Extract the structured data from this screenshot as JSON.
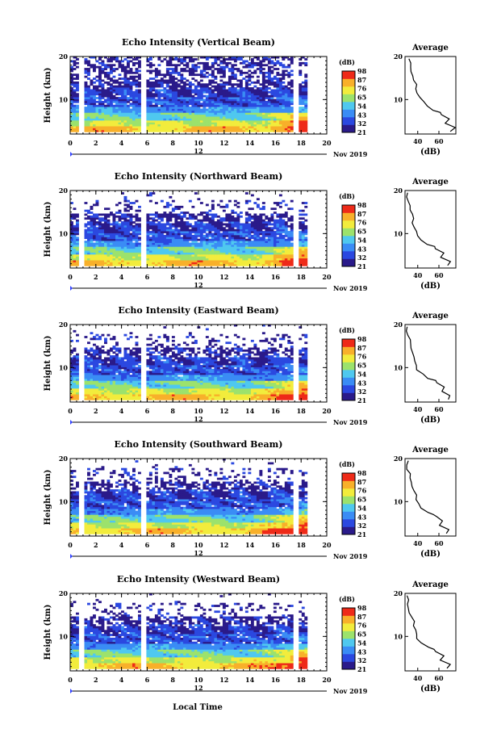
{
  "figure": {
    "date_label": "Nov 2019",
    "day_label": "12",
    "xlabel": "Local Time",
    "ylabel": "Height (km)",
    "colorbar_unit": "(dB)",
    "avg_title": "Average",
    "avg_xlabel": "(dB)"
  },
  "chart_data": [
    {
      "type": "heatmap",
      "title": "Echo Intensity (Vertical Beam)",
      "xlabel": "Local Time",
      "ylabel": "Height (km)",
      "xlim": [
        0,
        20
      ],
      "ylim": [
        2,
        20
      ],
      "xticks": [
        0,
        2,
        4,
        6,
        8,
        10,
        12,
        14,
        16,
        18,
        20
      ],
      "yticks": [
        10,
        20
      ],
      "colorbar": {
        "label": "(dB)",
        "ticks": [
          21,
          32,
          43,
          54,
          65,
          76,
          87,
          98
        ],
        "colors": [
          "#2a1a8a",
          "#2b48e0",
          "#3a8cf5",
          "#4fc8ef",
          "#9ce26c",
          "#f2ec3c",
          "#f8b02a",
          "#ee2a18"
        ]
      },
      "data_gaps_hours": [
        [
          0.75,
          1.1
        ],
        [
          5.6,
          5.85
        ],
        [
          17.55,
          17.75
        ]
      ],
      "cutoff_hour": 18.3,
      "average_profile": {
        "title": "Average",
        "xlabel": "(dB)",
        "xlim": [
          28,
          76
        ],
        "ylim": [
          2,
          20
        ],
        "xticks": [
          40,
          60
        ],
        "yticks": [
          10,
          20
        ],
        "height": [
          2.6,
          3.5,
          4.5,
          5.5,
          6.5,
          7.0,
          7.5,
          8.5,
          9.5,
          10.5,
          11.5,
          12.5,
          13.5,
          14.5,
          15.5,
          16.5,
          17.5,
          18.5,
          19.5
        ],
        "value": [
          72,
          74,
          66,
          70,
          62,
          60,
          56,
          48,
          46,
          42,
          40,
          38,
          38,
          36,
          34,
          34,
          32,
          32,
          32
        ]
      }
    },
    {
      "type": "heatmap",
      "title": "Echo Intensity (Northward Beam)",
      "xlabel": "Local Time",
      "ylabel": "Height (km)",
      "xlim": [
        0,
        20
      ],
      "ylim": [
        2,
        20
      ],
      "xticks": [
        0,
        2,
        4,
        6,
        8,
        10,
        12,
        14,
        16,
        18,
        20
      ],
      "yticks": [
        10,
        20
      ],
      "colorbar": {
        "label": "(dB)",
        "ticks": [
          21,
          32,
          43,
          54,
          65,
          76,
          87,
          98
        ],
        "colors": [
          "#2a1a8a",
          "#2b48e0",
          "#3a8cf5",
          "#4fc8ef",
          "#9ce26c",
          "#f2ec3c",
          "#f8b02a",
          "#ee2a18"
        ]
      },
      "data_gaps_hours": [
        [
          0.75,
          1.1
        ],
        [
          5.6,
          5.85
        ],
        [
          17.55,
          17.75
        ]
      ],
      "cutoff_hour": 18.3,
      "average_profile": {
        "title": "Average",
        "xlabel": "(dB)",
        "xlim": [
          28,
          76
        ],
        "ylim": [
          2,
          20
        ],
        "xticks": [
          40,
          60
        ],
        "yticks": [
          10,
          20
        ],
        "height": [
          2.6,
          3.5,
          4.5,
          5.5,
          6.5,
          7.0,
          7.5,
          8.5,
          9.5,
          10.5,
          11.5,
          12.5,
          13.5,
          14.5,
          15.5,
          16.5,
          17.5,
          18.5,
          19.5
        ],
        "value": [
          68,
          70,
          62,
          64,
          58,
          56,
          50,
          44,
          40,
          38,
          38,
          36,
          36,
          34,
          33,
          32,
          31,
          30,
          30
        ]
      }
    },
    {
      "type": "heatmap",
      "title": "Echo Intensity (Eastward Beam)",
      "xlabel": "Local Time",
      "ylabel": "Height (km)",
      "xlim": [
        0,
        20
      ],
      "ylim": [
        2,
        20
      ],
      "xticks": [
        0,
        2,
        4,
        6,
        8,
        10,
        12,
        14,
        16,
        18,
        20
      ],
      "yticks": [
        10,
        20
      ],
      "colorbar": {
        "label": "(dB)",
        "ticks": [
          21,
          32,
          43,
          54,
          65,
          76,
          87,
          98
        ],
        "colors": [
          "#2a1a8a",
          "#2b48e0",
          "#3a8cf5",
          "#4fc8ef",
          "#9ce26c",
          "#f2ec3c",
          "#f8b02a",
          "#ee2a18"
        ]
      },
      "data_gaps_hours": [
        [
          0.75,
          1.1
        ],
        [
          5.6,
          5.85
        ],
        [
          17.55,
          17.75
        ]
      ],
      "cutoff_hour": 18.3,
      "average_profile": {
        "title": "Average",
        "xlabel": "(dB)",
        "xlim": [
          28,
          76
        ],
        "ylim": [
          2,
          20
        ],
        "xticks": [
          40,
          60
        ],
        "yticks": [
          10,
          20
        ],
        "height": [
          2.6,
          3.5,
          4.5,
          5.5,
          6.5,
          7.0,
          7.5,
          8.5,
          9.5,
          10.5,
          11.5,
          12.5,
          13.5,
          14.5,
          15.5,
          16.5,
          17.5,
          18.5,
          19.5
        ],
        "value": [
          68,
          70,
          62,
          64,
          58,
          56,
          50,
          44,
          40,
          38,
          38,
          36,
          36,
          34,
          33,
          32,
          31,
          30,
          30
        ]
      }
    },
    {
      "type": "heatmap",
      "title": "Echo Intensity (Southward Beam)",
      "xlabel": "Local Time",
      "ylabel": "Height (km)",
      "xlim": [
        0,
        20
      ],
      "ylim": [
        2,
        20
      ],
      "xticks": [
        0,
        2,
        4,
        6,
        8,
        10,
        12,
        14,
        16,
        18,
        20
      ],
      "yticks": [
        10,
        20
      ],
      "colorbar": {
        "label": "(dB)",
        "ticks": [
          21,
          32,
          43,
          54,
          65,
          76,
          87,
          98
        ],
        "colors": [
          "#2a1a8a",
          "#2b48e0",
          "#3a8cf5",
          "#4fc8ef",
          "#9ce26c",
          "#f2ec3c",
          "#f8b02a",
          "#ee2a18"
        ]
      },
      "data_gaps_hours": [
        [
          0.75,
          1.1
        ],
        [
          5.6,
          5.85
        ],
        [
          17.55,
          17.75
        ]
      ],
      "cutoff_hour": 18.3,
      "average_profile": {
        "title": "Average",
        "xlabel": "(dB)",
        "xlim": [
          28,
          76
        ],
        "ylim": [
          2,
          20
        ],
        "xticks": [
          40,
          60
        ],
        "yticks": [
          10,
          20
        ],
        "height": [
          2.6,
          3.5,
          4.5,
          5.5,
          6.5,
          7.0,
          7.5,
          8.5,
          9.5,
          10.5,
          11.5,
          12.5,
          13.5,
          14.5,
          15.5,
          16.5,
          17.5,
          18.5,
          19.5
        ],
        "value": [
          68,
          70,
          62,
          64,
          58,
          56,
          50,
          44,
          40,
          38,
          38,
          36,
          36,
          34,
          33,
          32,
          31,
          30,
          30
        ]
      }
    },
    {
      "type": "heatmap",
      "title": "Echo Intensity (Westward Beam)",
      "xlabel": "Local Time",
      "ylabel": "Height (km)",
      "xlim": [
        0,
        20
      ],
      "ylim": [
        2,
        20
      ],
      "xticks": [
        0,
        2,
        4,
        6,
        8,
        10,
        12,
        14,
        16,
        18,
        20
      ],
      "yticks": [
        10,
        20
      ],
      "colorbar": {
        "label": "(dB)",
        "ticks": [
          21,
          32,
          43,
          54,
          65,
          76,
          87,
          98
        ],
        "colors": [
          "#2a1a8a",
          "#2b48e0",
          "#3a8cf5",
          "#4fc8ef",
          "#9ce26c",
          "#f2ec3c",
          "#f8b02a",
          "#ee2a18"
        ]
      },
      "data_gaps_hours": [
        [
          0.75,
          1.1
        ],
        [
          5.6,
          5.85
        ],
        [
          17.55,
          17.75
        ]
      ],
      "cutoff_hour": 18.3,
      "average_profile": {
        "title": "Average",
        "xlabel": "(dB)",
        "xlim": [
          28,
          76
        ],
        "ylim": [
          2,
          20
        ],
        "xticks": [
          40,
          60
        ],
        "yticks": [
          10,
          20
        ],
        "height": [
          2.6,
          3.5,
          4.5,
          5.5,
          6.5,
          7.0,
          7.5,
          8.5,
          9.5,
          10.5,
          11.5,
          12.5,
          13.5,
          14.5,
          15.5,
          16.5,
          17.5,
          18.5,
          19.5
        ],
        "value": [
          68,
          70,
          62,
          64,
          58,
          56,
          50,
          44,
          40,
          38,
          38,
          36,
          36,
          34,
          33,
          32,
          31,
          30,
          30
        ]
      }
    }
  ]
}
